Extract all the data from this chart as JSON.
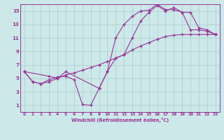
{
  "xlabel": "Windchill (Refroidissement éolien,°C)",
  "bg_color": "#cce8e8",
  "grid_color": "#aacccc",
  "line_color": "#993399",
  "xlim": [
    -0.5,
    23.5
  ],
  "ylim": [
    0,
    16
  ],
  "xticks": [
    0,
    1,
    2,
    3,
    4,
    5,
    6,
    7,
    8,
    9,
    10,
    11,
    12,
    13,
    14,
    15,
    16,
    17,
    18,
    19,
    20,
    21,
    22,
    23
  ],
  "yticks": [
    1,
    3,
    5,
    7,
    9,
    11,
    13,
    15
  ],
  "series1_x": [
    0,
    1,
    2,
    3,
    4,
    5,
    6,
    7,
    8,
    9,
    10,
    11,
    12,
    13,
    14,
    15,
    16,
    17,
    18,
    19,
    20,
    21,
    22,
    23
  ],
  "series1_y": [
    6.0,
    4.5,
    4.2,
    4.8,
    5.2,
    5.3,
    4.8,
    1.1,
    1.0,
    3.5,
    6.0,
    11.0,
    13.0,
    14.2,
    15.0,
    15.1,
    16.0,
    15.2,
    15.2,
    14.8,
    12.2,
    12.2,
    12.0,
    11.5
  ],
  "series2_x": [
    0,
    3,
    4,
    5,
    9,
    10,
    11,
    12,
    13,
    14,
    15,
    16,
    17,
    18,
    19,
    20,
    21,
    22,
    23
  ],
  "series2_y": [
    6.0,
    5.3,
    5.0,
    6.0,
    3.5,
    6.0,
    8.0,
    8.5,
    11.0,
    13.5,
    14.8,
    15.8,
    15.0,
    15.5,
    14.8,
    14.8,
    12.5,
    12.2,
    11.5
  ],
  "series3_x": [
    0,
    1,
    2,
    3,
    4,
    5,
    6,
    7,
    8,
    9,
    10,
    11,
    12,
    13,
    14,
    15,
    16,
    17,
    18,
    19,
    20,
    21,
    22,
    23
  ],
  "series3_y": [
    6.0,
    4.5,
    4.2,
    4.5,
    5.0,
    5.5,
    5.8,
    6.2,
    6.6,
    7.0,
    7.5,
    8.0,
    8.5,
    9.2,
    9.8,
    10.3,
    10.8,
    11.2,
    11.4,
    11.5,
    11.5,
    11.5,
    11.5,
    11.5
  ]
}
